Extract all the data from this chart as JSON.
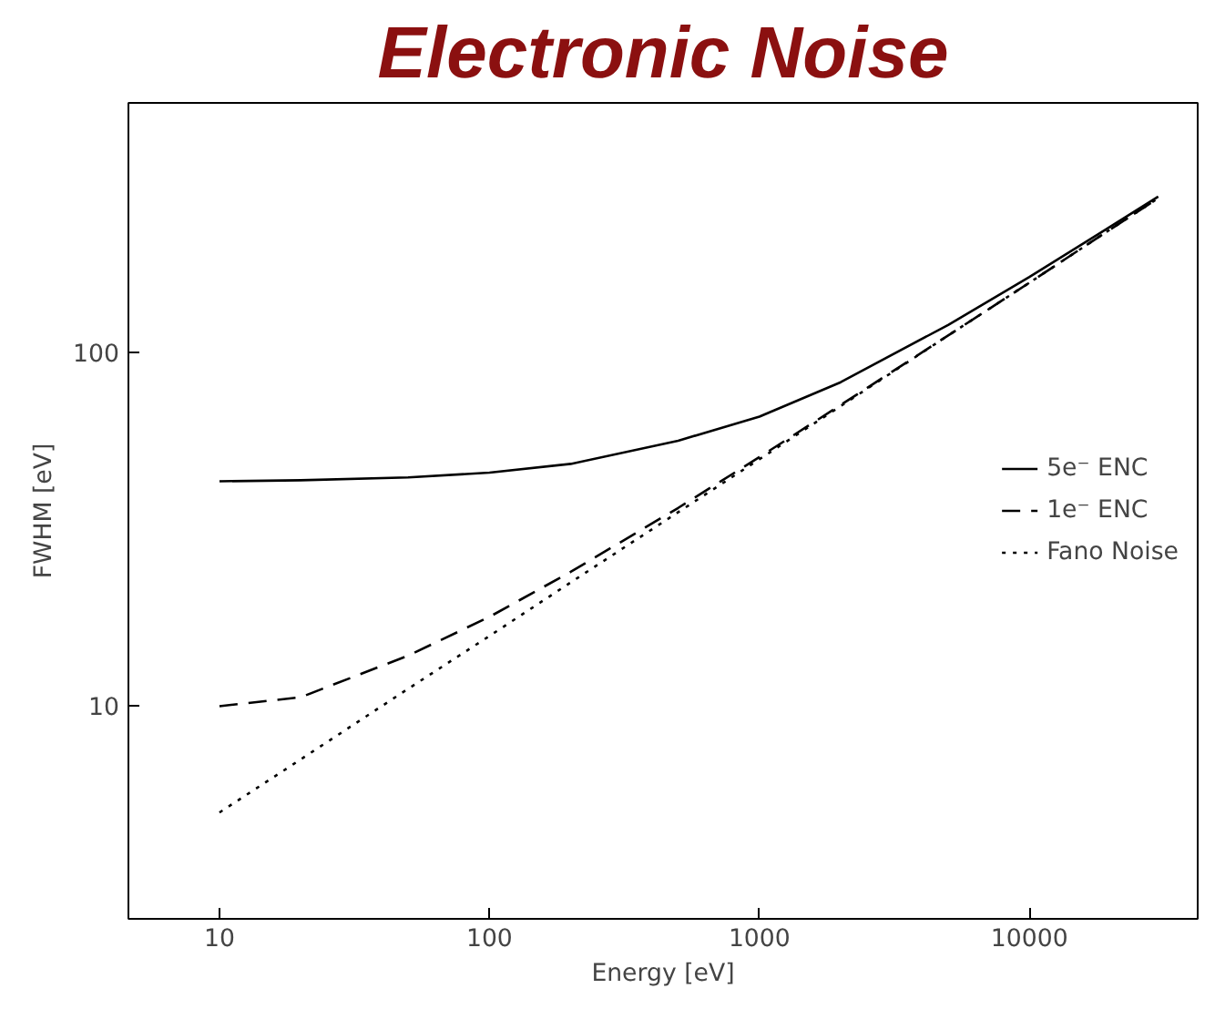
{
  "chart_data": {
    "type": "line",
    "title": "Electronic Noise",
    "xlabel": "Energy [eV]",
    "ylabel": "FWHM [eV]",
    "log": "xy",
    "xlim": [
      4.6,
      42000
    ],
    "ylim": [
      2.5,
      510
    ],
    "xticks": [
      10,
      100,
      1000,
      10000
    ],
    "yticks": [
      10,
      100
    ],
    "grid": false,
    "legend": "right",
    "x": [
      10,
      20,
      50,
      100,
      200,
      500,
      1000,
      2000,
      5000,
      10000,
      20000,
      30000
    ],
    "series": [
      {
        "name": "5e⁻ ENC",
        "color": "#000000",
        "line_style": "solid",
        "values": [
          43.3,
          43.6,
          44.4,
          45.8,
          48.5,
          56.4,
          66.0,
          82.6,
          120,
          164,
          228,
          277
        ]
      },
      {
        "name": "1e⁻ ENC",
        "color": "#000000",
        "line_style": "dashed",
        "values": [
          10.0,
          10.6,
          13.9,
          17.9,
          24.0,
          36.4,
          50.7,
          71.2,
          112,
          158,
          224,
          274
        ]
      },
      {
        "name": "Fano Noise",
        "color": "#000000",
        "line_style": "dotted",
        "values": [
          5.0,
          7.07,
          11.2,
          15.8,
          22.4,
          35.4,
          50,
          70.7,
          112,
          158,
          224,
          274
        ]
      }
    ]
  }
}
